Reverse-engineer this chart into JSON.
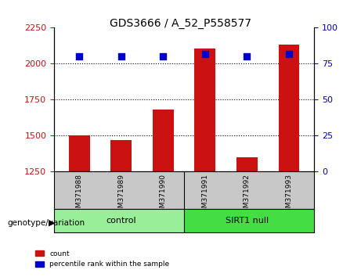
{
  "title": "GDS3666 / A_52_P558577",
  "samples": [
    "GSM371988",
    "GSM371989",
    "GSM371990",
    "GSM371991",
    "GSM371992",
    "GSM371993"
  ],
  "counts": [
    1500,
    1470,
    1680,
    2105,
    1350,
    2130
  ],
  "percentile_ranks": [
    80,
    80,
    80,
    82,
    80,
    82
  ],
  "ylim_left": [
    1250,
    2250
  ],
  "ylim_right": [
    0,
    100
  ],
  "yticks_left": [
    1250,
    1500,
    1750,
    2000,
    2250
  ],
  "yticks_right": [
    0,
    25,
    50,
    75,
    100
  ],
  "bar_color": "#cc1111",
  "square_color": "#0000cc",
  "group_labels": [
    "control",
    "SIRT1 null"
  ],
  "group_colors": [
    "#99ee99",
    "#44dd44"
  ],
  "bottom_label": "genotype/variation",
  "legend_count_label": "count",
  "legend_percentile_label": "percentile rank within the sample",
  "grid_color": "black",
  "left_tick_color": "#cc1111",
  "right_tick_color": "#0000cc",
  "bar_width": 0.5,
  "bottom_panel_bg": "#c8c8c8"
}
